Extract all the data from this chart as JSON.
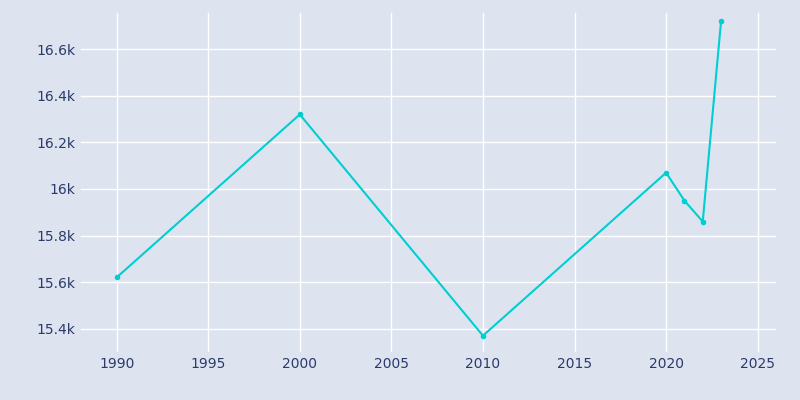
{
  "years": [
    1990,
    2000,
    2010,
    2020,
    2021,
    2022,
    2023
  ],
  "population": [
    15620,
    16320,
    15370,
    16070,
    15950,
    15860,
    16720
  ],
  "line_color": "#00CED1",
  "background_color": "#dde4f0",
  "axes_bg_color": "#dde4f0",
  "grid_color": "#ffffff",
  "tick_color": "#2b3a6b",
  "xlim": [
    1988,
    2026
  ],
  "ylim": [
    15300,
    16760
  ],
  "xticks": [
    1990,
    1995,
    2000,
    2005,
    2010,
    2015,
    2020,
    2025
  ],
  "yticks": [
    15400,
    15600,
    15800,
    16000,
    16200,
    16400,
    16600
  ],
  "figsize": [
    8.0,
    4.0
  ],
  "dpi": 100
}
